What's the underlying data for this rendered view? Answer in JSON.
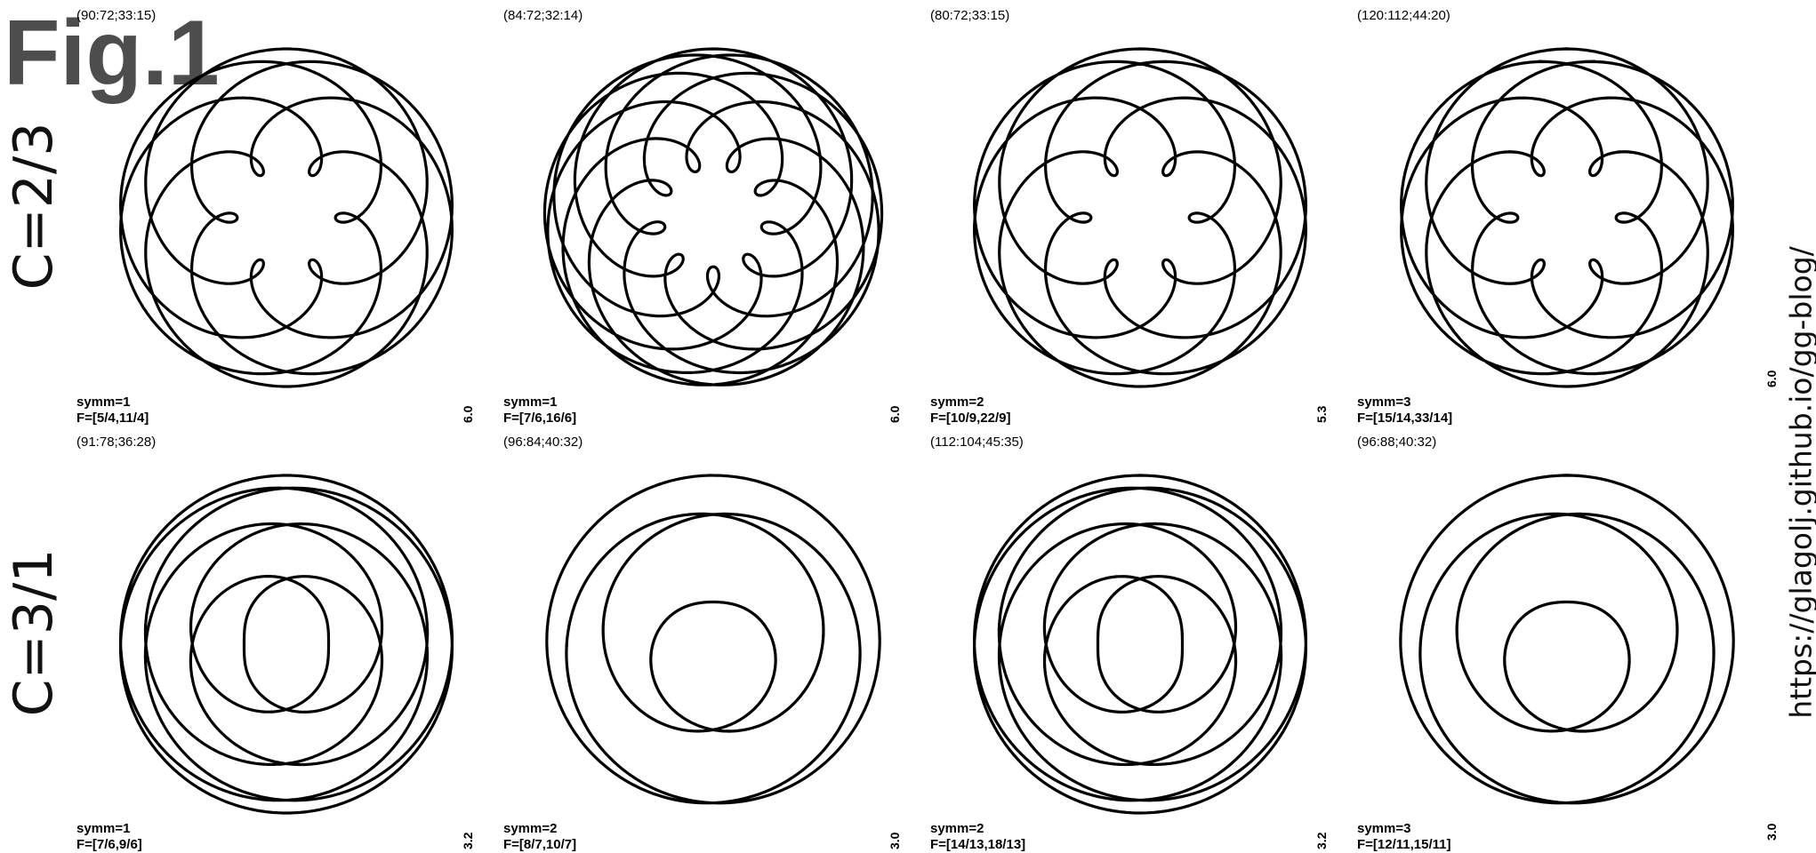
{
  "figure": {
    "title": "Fig.1",
    "url": "https://glagolj.github.io/gg-blog/",
    "rows": [
      {
        "label": "C=2/3",
        "last_scale": "6.0"
      },
      {
        "label": "C=3/1",
        "last_scale": "3.0"
      }
    ],
    "panels": [
      {
        "params": "(90:72;33:15)",
        "symm": "symm=1",
        "F": "F=[5/4,11/4]",
        "scale": "",
        "row": 0,
        "col": 0,
        "curve": {
          "a": 1.25,
          "b": 2.75,
          "ra": 1.0,
          "rb": 0.55,
          "turns": 4
        }
      },
      {
        "params": "(84:72;32:14)",
        "symm": "symm=1",
        "F": "F=[7/6,16/6]",
        "scale": "6.0",
        "row": 0,
        "col": 1,
        "curve": {
          "a": 1.1667,
          "b": 2.6667,
          "ra": 1.0,
          "rb": 0.55,
          "turns": 6
        }
      },
      {
        "params": "(80:72;33:15)",
        "symm": "symm=2",
        "F": "F=[10/9,22/9]",
        "scale": "6.0",
        "row": 0,
        "col": 2,
        "curve": {
          "a": 1.1111,
          "b": 2.4444,
          "ra": 1.0,
          "rb": 0.55,
          "turns": 9
        }
      },
      {
        "params": "(120:112;44:20)",
        "symm": "symm=3",
        "F": "F=[15/14,33/14]",
        "scale": "5.3",
        "row": 0,
        "col": 3,
        "curve": {
          "a": 1.0714,
          "b": 2.3571,
          "ra": 1.0,
          "rb": 0.55,
          "turns": 14
        }
      },
      {
        "params": "(91:78;36:28)",
        "symm": "symm=1",
        "F": "F=[7/6,9/6]",
        "scale": "",
        "row": 1,
        "col": 0,
        "curve": {
          "a": 1.1667,
          "b": 1.5,
          "ra": 1.0,
          "rb": 0.6,
          "turns": 6
        }
      },
      {
        "params": "(96:84;40:32)",
        "symm": "symm=2",
        "F": "F=[8/7,10/7]",
        "scale": "3.2",
        "row": 1,
        "col": 1,
        "curve": {
          "a": 1.1429,
          "b": 1.4286,
          "ra": 1.0,
          "rb": 0.6,
          "turns": 7
        }
      },
      {
        "params": "(112:104;45:35)",
        "symm": "symm=2",
        "F": "F=[14/13,18/13]",
        "scale": "3.0",
        "row": 1,
        "col": 2,
        "curve": {
          "a": 1.0769,
          "b": 1.3846,
          "ra": 1.0,
          "rb": 0.6,
          "turns": 13
        }
      },
      {
        "params": "(96:88;40:32)",
        "symm": "symm=3",
        "F": "F=[12/11,15/11]",
        "scale": "3.2",
        "row": 1,
        "col": 3,
        "curve": {
          "a": 1.0909,
          "b": 1.3636,
          "ra": 1.0,
          "rb": 0.6,
          "turns": 11
        }
      }
    ]
  }
}
